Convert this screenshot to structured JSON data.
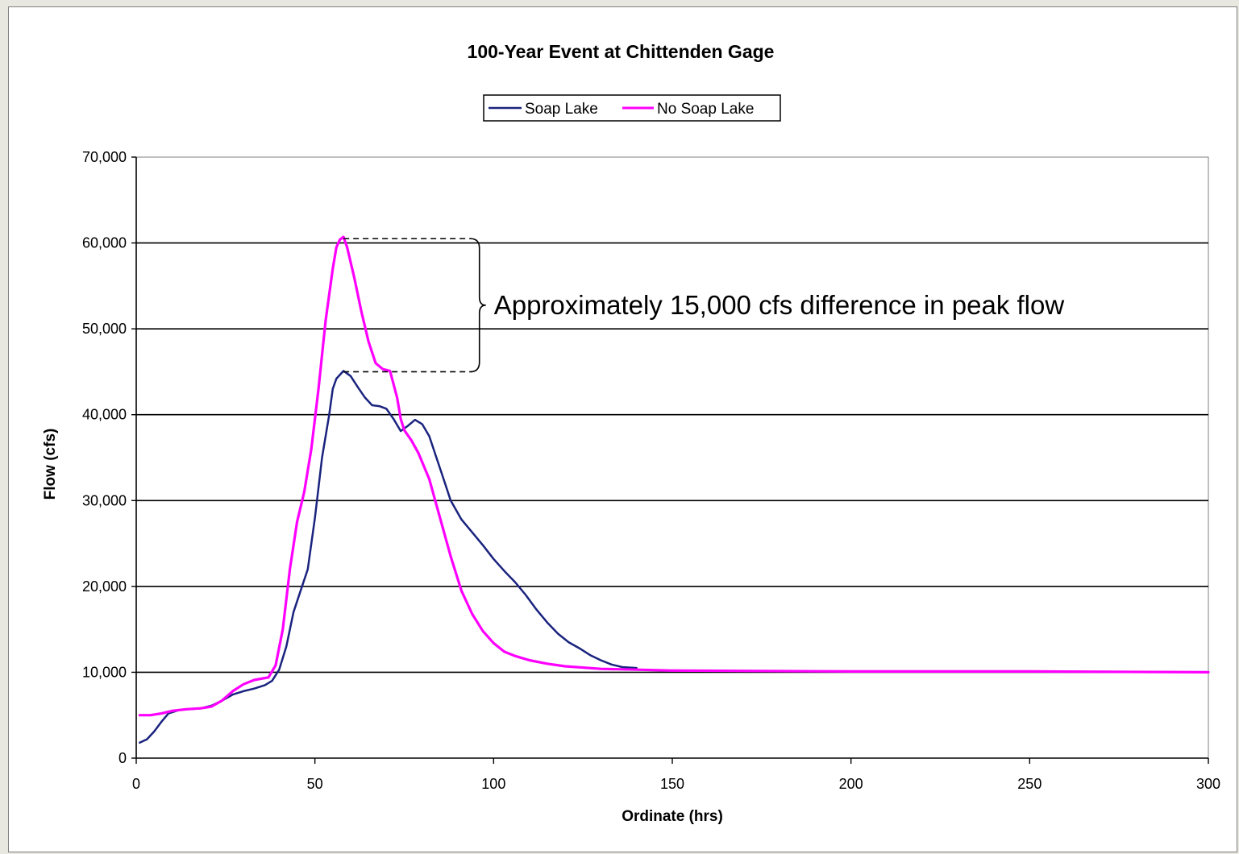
{
  "chart_data": {
    "type": "line",
    "title": "100-Year Event at Chittenden Gage",
    "xlabel": "Ordinate (hrs)",
    "ylabel": "Flow (cfs)",
    "xlim": [
      0,
      300
    ],
    "ylim": [
      0,
      70000
    ],
    "xticks": [
      0,
      50,
      100,
      150,
      200,
      250,
      300
    ],
    "xtick_labels": [
      "0",
      "50",
      "100",
      "150",
      "200",
      "250",
      "300"
    ],
    "yticks": [
      0,
      10000,
      20000,
      30000,
      40000,
      50000,
      60000,
      70000
    ],
    "ytick_labels": [
      "0",
      "10,000",
      "20,000",
      "30,000",
      "40,000",
      "50,000",
      "60,000",
      "70,000"
    ],
    "grid": "horizontal",
    "legend": {
      "placement": "top-center",
      "entries": [
        "Soap Lake",
        "No Soap Lake"
      ]
    },
    "series": [
      {
        "name": "Soap Lake",
        "color": "#1a237e",
        "points": [
          [
            1,
            1800
          ],
          [
            3,
            2200
          ],
          [
            5,
            3100
          ],
          [
            7,
            4200
          ],
          [
            9,
            5200
          ],
          [
            12,
            5600
          ],
          [
            15,
            5700
          ],
          [
            18,
            5800
          ],
          [
            21,
            6100
          ],
          [
            24,
            6700
          ],
          [
            27,
            7400
          ],
          [
            30,
            7800
          ],
          [
            33,
            8100
          ],
          [
            36,
            8500
          ],
          [
            38,
            9000
          ],
          [
            40,
            10300
          ],
          [
            42,
            13000
          ],
          [
            44,
            17000
          ],
          [
            46,
            19500
          ],
          [
            48,
            22000
          ],
          [
            50,
            28000
          ],
          [
            52,
            35000
          ],
          [
            54,
            40000
          ],
          [
            55,
            43000
          ],
          [
            56,
            44200
          ],
          [
            58,
            45100
          ],
          [
            60,
            44500
          ],
          [
            62,
            43200
          ],
          [
            64,
            42000
          ],
          [
            66,
            41100
          ],
          [
            68,
            41000
          ],
          [
            70,
            40700
          ],
          [
            72,
            39500
          ],
          [
            74,
            38100
          ],
          [
            76,
            38700
          ],
          [
            78,
            39400
          ],
          [
            80,
            38900
          ],
          [
            82,
            37500
          ],
          [
            84,
            35000
          ],
          [
            86,
            32500
          ],
          [
            88,
            30000
          ],
          [
            91,
            27800
          ],
          [
            94,
            26300
          ],
          [
            97,
            24800
          ],
          [
            100,
            23200
          ],
          [
            103,
            21800
          ],
          [
            106,
            20500
          ],
          [
            109,
            19000
          ],
          [
            112,
            17300
          ],
          [
            115,
            15800
          ],
          [
            118,
            14500
          ],
          [
            121,
            13500
          ],
          [
            124,
            12800
          ],
          [
            127,
            12000
          ],
          [
            130,
            11400
          ],
          [
            133,
            10900
          ],
          [
            136,
            10600
          ],
          [
            140,
            10500
          ]
        ]
      },
      {
        "name": "No Soap Lake",
        "color": "#ff00ff",
        "points": [
          [
            1,
            5000
          ],
          [
            4,
            5000
          ],
          [
            7,
            5200
          ],
          [
            10,
            5500
          ],
          [
            14,
            5700
          ],
          [
            18,
            5800
          ],
          [
            21,
            6000
          ],
          [
            24,
            6700
          ],
          [
            27,
            7800
          ],
          [
            30,
            8600
          ],
          [
            33,
            9100
          ],
          [
            37,
            9400
          ],
          [
            39,
            10800
          ],
          [
            41,
            15000
          ],
          [
            43,
            22000
          ],
          [
            45,
            27500
          ],
          [
            47,
            31000
          ],
          [
            49,
            36000
          ],
          [
            51,
            43000
          ],
          [
            53,
            51000
          ],
          [
            55,
            57000
          ],
          [
            56,
            59500
          ],
          [
            57,
            60400
          ],
          [
            58,
            60700
          ],
          [
            59,
            59500
          ],
          [
            61,
            56000
          ],
          [
            63,
            52000
          ],
          [
            65,
            48500
          ],
          [
            67,
            46000
          ],
          [
            69,
            45300
          ],
          [
            71,
            45100
          ],
          [
            73,
            42000
          ],
          [
            74,
            39500
          ],
          [
            75,
            38200
          ],
          [
            77,
            37000
          ],
          [
            79,
            35500
          ],
          [
            82,
            32500
          ],
          [
            85,
            28000
          ],
          [
            88,
            23500
          ],
          [
            91,
            19500
          ],
          [
            94,
            16800
          ],
          [
            97,
            14800
          ],
          [
            100,
            13400
          ],
          [
            103,
            12400
          ],
          [
            106,
            11900
          ],
          [
            110,
            11400
          ],
          [
            115,
            11000
          ],
          [
            120,
            10700
          ],
          [
            130,
            10400
          ],
          [
            140,
            10300
          ],
          [
            150,
            10200
          ],
          [
            200,
            10100
          ],
          [
            250,
            10100
          ],
          [
            300,
            10000
          ]
        ]
      }
    ],
    "annotations": [
      {
        "text": "Approximately 15,000 cfs difference in peak flow",
        "upper": 60500,
        "lower": 45000,
        "x_start": 58,
        "x_end": 94
      }
    ]
  }
}
